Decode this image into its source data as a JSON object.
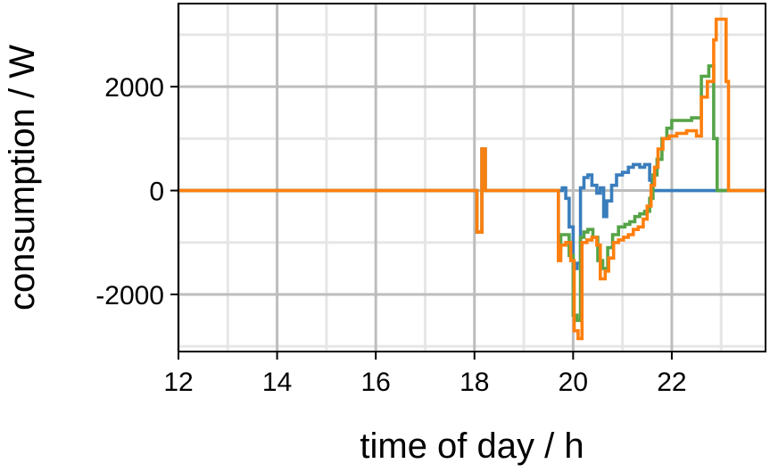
{
  "chart_data": {
    "type": "line",
    "step": true,
    "title": "",
    "xlabel": "time of day / h",
    "ylabel": "consumption / W",
    "xlim": [
      12,
      23.9
    ],
    "ylim": [
      -3100,
      3600
    ],
    "xticks": [
      12,
      14,
      16,
      18,
      20,
      22
    ],
    "xtick_labels": [
      "12",
      "14",
      "16",
      "18",
      "20",
      "22"
    ],
    "yticks": [
      -2000,
      0,
      2000
    ],
    "ytick_labels": [
      "-2000",
      "0",
      "2000"
    ],
    "grid": true,
    "legend": "none",
    "series": [
      {
        "color": "#3a7dbd",
        "x": [
          12,
          18.05,
          18.15,
          18.22,
          18.28,
          19.7,
          19.78,
          19.85,
          19.92,
          20.0,
          20.08,
          20.15,
          20.22,
          20.3,
          20.38,
          20.48,
          20.55,
          20.62,
          20.68,
          20.78,
          20.88,
          21.0,
          21.12,
          21.22,
          21.35,
          21.45,
          21.55,
          21.6,
          23.9
        ],
        "y": [
          0,
          -800,
          800,
          0,
          0,
          0,
          50,
          -150,
          -700,
          -1500,
          -1400,
          50,
          250,
          300,
          100,
          -50,
          50,
          -500,
          -200,
          100,
          300,
          350,
          450,
          500,
          450,
          500,
          200,
          0,
          0
        ]
      },
      {
        "color": "#55a447",
        "x": [
          12,
          18.05,
          18.15,
          18.22,
          18.28,
          19.7,
          19.75,
          19.82,
          19.92,
          20.0,
          20.08,
          20.15,
          20.22,
          20.3,
          20.4,
          20.5,
          20.6,
          20.7,
          20.8,
          20.92,
          21.05,
          21.15,
          21.25,
          21.35,
          21.45,
          21.55,
          21.62,
          21.7,
          21.8,
          21.9,
          22.0,
          22.2,
          22.4,
          22.5,
          22.6,
          22.75,
          22.85,
          22.92,
          23.9
        ],
        "y": [
          0,
          -800,
          800,
          0,
          0,
          -1150,
          -850,
          -850,
          -1250,
          -2400,
          -2500,
          -900,
          -800,
          -750,
          -900,
          -1350,
          -1500,
          -1100,
          -850,
          -700,
          -650,
          -600,
          -500,
          -450,
          -400,
          -150,
          300,
          600,
          1000,
          1200,
          1350,
          1350,
          1400,
          1400,
          2200,
          2400,
          1000,
          0,
          0
        ]
      },
      {
        "color": "#ff7f0e",
        "x": [
          12,
          18.05,
          18.15,
          18.22,
          18.28,
          19.7,
          19.75,
          19.85,
          19.95,
          20.02,
          20.1,
          20.18,
          20.28,
          20.38,
          20.48,
          20.55,
          20.65,
          20.72,
          20.82,
          20.92,
          21.02,
          21.12,
          21.22,
          21.32,
          21.42,
          21.5,
          21.58,
          21.65,
          21.72,
          21.82,
          21.95,
          22.1,
          22.3,
          22.5,
          22.6,
          22.72,
          22.85,
          22.9,
          23.1,
          23.15,
          23.9
        ],
        "y": [
          0,
          -800,
          800,
          0,
          0,
          -1350,
          -1050,
          -1000,
          -1350,
          -2700,
          -2850,
          -1000,
          -950,
          -900,
          -1050,
          -1700,
          -1550,
          -1300,
          -1000,
          -950,
          -900,
          -850,
          -750,
          -700,
          -550,
          -300,
          100,
          450,
          800,
          1000,
          1050,
          1100,
          1150,
          1050,
          1800,
          2100,
          2900,
          3300,
          2100,
          0,
          0
        ]
      }
    ]
  }
}
